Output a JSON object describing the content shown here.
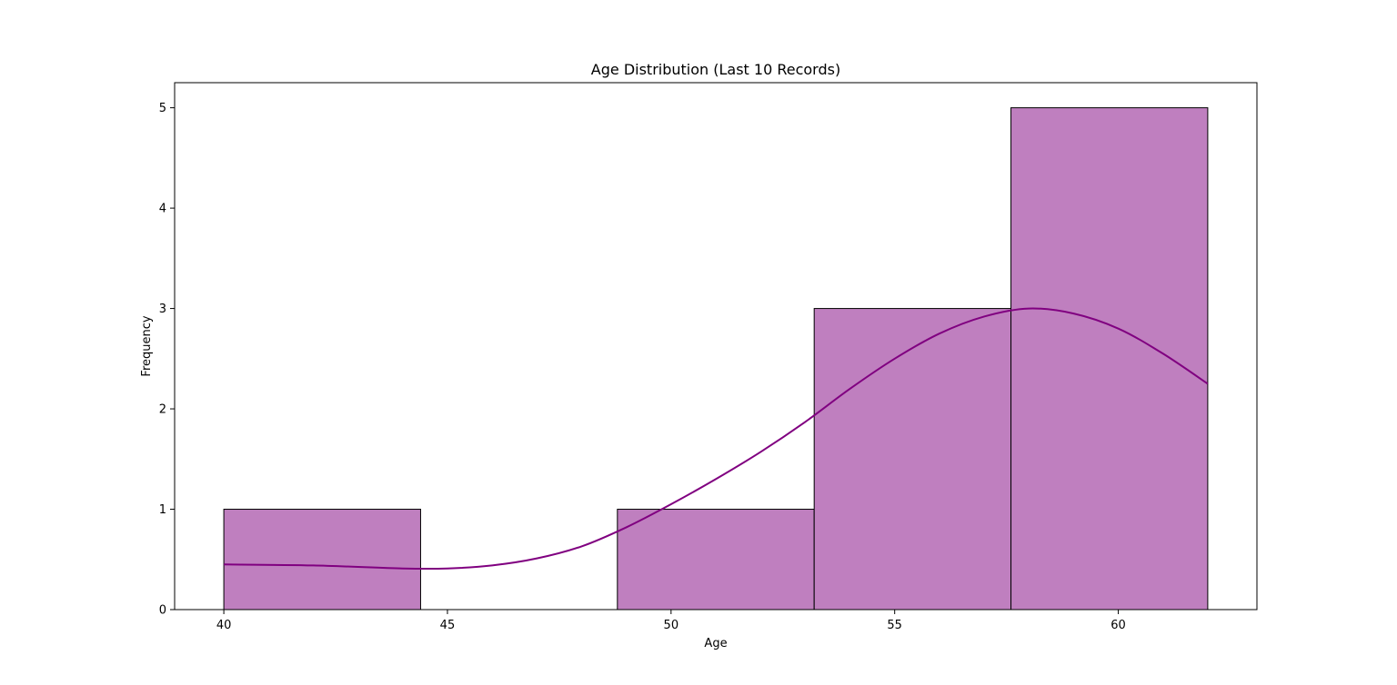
{
  "chart_data": {
    "type": "bar",
    "title": "Age Distribution (Last 10 Records)",
    "xlabel": "Age",
    "ylabel": "Frequency",
    "bins": [
      {
        "start": 40.0,
        "end": 44.4,
        "count": 1
      },
      {
        "start": 44.4,
        "end": 48.8,
        "count": 0
      },
      {
        "start": 48.8,
        "end": 53.2,
        "count": 1
      },
      {
        "start": 53.2,
        "end": 57.6,
        "count": 3
      },
      {
        "start": 57.6,
        "end": 62.0,
        "count": 5
      }
    ],
    "kde": {
      "x": [
        40,
        42,
        44,
        45,
        46,
        47,
        48,
        49,
        50,
        51,
        52,
        53,
        54,
        55,
        56,
        57,
        58,
        59,
        60,
        61,
        62
      ],
      "y": [
        0.45,
        0.44,
        0.41,
        0.41,
        0.44,
        0.51,
        0.63,
        0.82,
        1.05,
        1.3,
        1.57,
        1.87,
        2.2,
        2.5,
        2.75,
        2.92,
        3.0,
        2.95,
        2.8,
        2.55,
        2.25
      ]
    },
    "x_ticks": [
      40,
      45,
      50,
      55,
      60
    ],
    "y_ticks": [
      0,
      1,
      2,
      3,
      4,
      5
    ],
    "xlim": [
      38.9,
      63.1
    ],
    "ylim": [
      0,
      5.25
    ],
    "colors": {
      "bar_fill": "#bf7fbf",
      "bar_edge": "#000000",
      "kde_line": "#800080"
    },
    "grid": false
  }
}
